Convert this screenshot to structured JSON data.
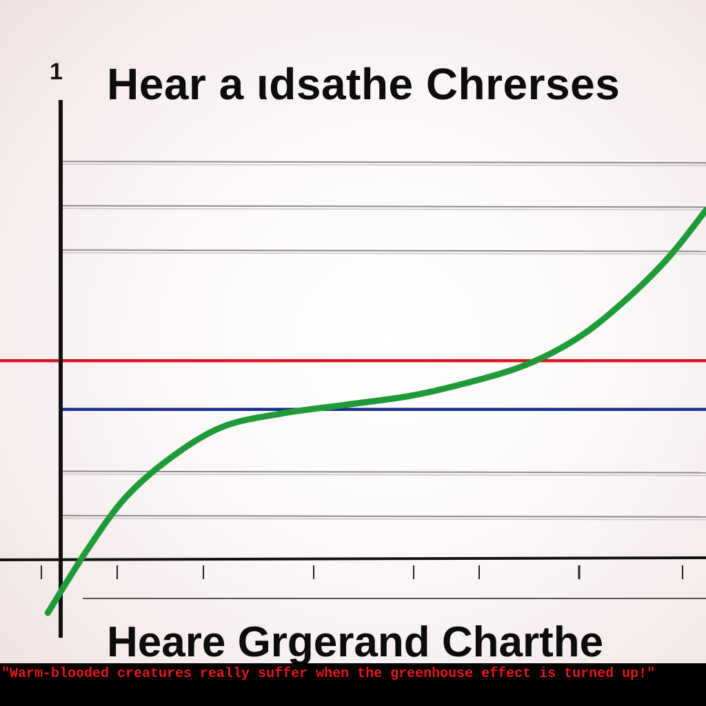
{
  "corner_mark": "1",
  "titles": {
    "top": "Hear a ιdsathe Chrerses",
    "bottom": "Heare Grgerand Charthe"
  },
  "caption": "\"Warm-blooded creatures really suffer when the greenhouse effect is turned up!\"",
  "colors": {
    "background": "#f5eded",
    "axis": "#111111",
    "gridline": "#8a8a8a",
    "red_line": "#d4141c",
    "blue_line": "#1a2e8c",
    "green_curve": "#1f9a38",
    "caption_text": "#e8141c",
    "caption_background": "#000000"
  },
  "chart_data": {
    "type": "line",
    "title": "Hear a ιdsathe Chrerses",
    "xlabel": "",
    "ylabel": "",
    "grid": true,
    "xlim": [
      0,
      10
    ],
    "ylim": [
      0,
      10
    ],
    "gridlines_y": [
      9,
      8,
      7,
      2,
      1
    ],
    "reference_lines": [
      {
        "color": "red",
        "y": 4.5
      },
      {
        "color": "blue",
        "y": 3.4
      }
    ],
    "series": [
      {
        "color": "green",
        "x": [
          -0.2,
          0.4,
          1.0,
          1.7,
          2.5,
          3.4,
          4.4,
          5.4,
          6.3,
          7.2,
          8.0,
          8.7,
          9.4,
          10.0
        ],
        "y": [
          -1.2,
          0.2,
          1.4,
          2.3,
          3.0,
          3.3,
          3.5,
          3.7,
          4.0,
          4.4,
          5.0,
          5.8,
          6.8,
          7.9
        ]
      }
    ]
  }
}
